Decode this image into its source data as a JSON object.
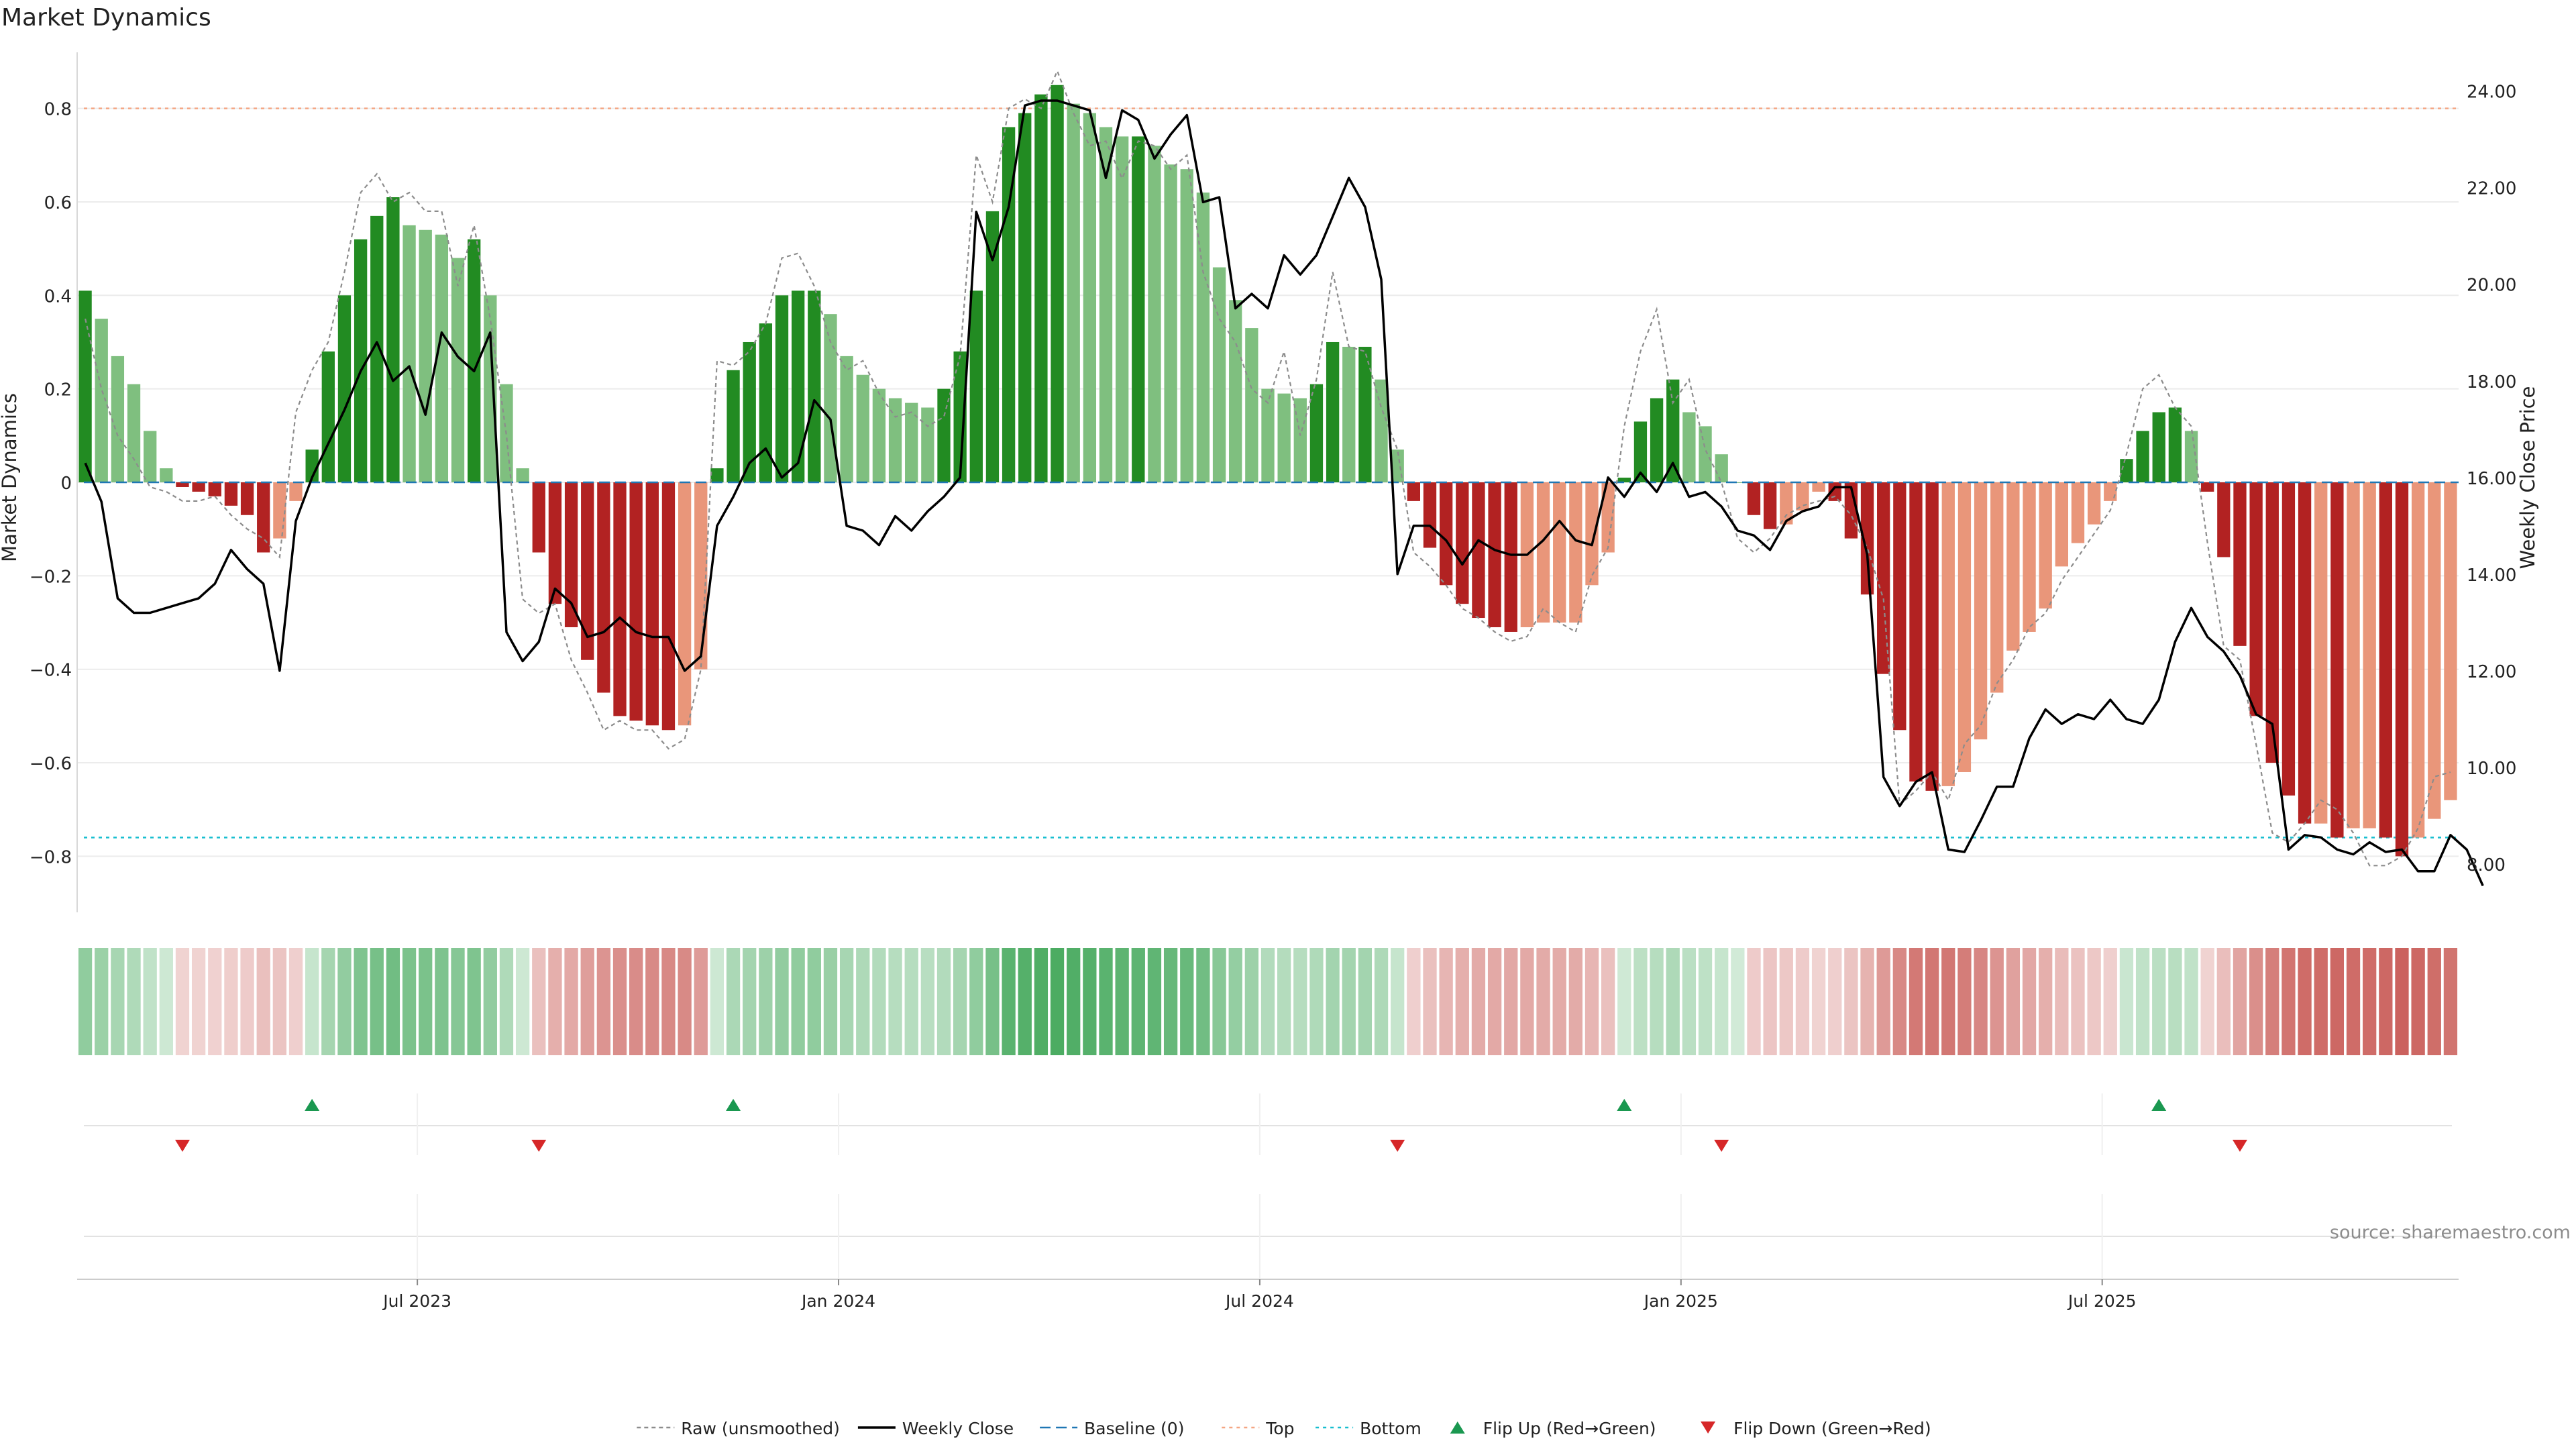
{
  "chart_data": {
    "type": "bar",
    "title": "Market Dynamics",
    "ylabel": "Market Dynamics",
    "y2label": "Weekly Close Price",
    "ylim": [
      -0.92,
      0.92
    ],
    "y2lim": [
      7.0,
      24.8
    ],
    "yticks": [
      {
        "v": 0.8,
        "label": "0.8"
      },
      {
        "v": 0.6,
        "label": "0.6"
      },
      {
        "v": 0.4,
        "label": "0.4"
      },
      {
        "v": 0.2,
        "label": "0.2"
      },
      {
        "v": 0,
        "label": "0"
      },
      {
        "v": -0.2,
        "label": "−0.2"
      },
      {
        "v": -0.4,
        "label": "−0.4"
      },
      {
        "v": -0.6,
        "label": "−0.6"
      },
      {
        "v": -0.8,
        "label": "−0.8"
      }
    ],
    "y2ticks": [
      {
        "v": 24,
        "label": "24.00"
      },
      {
        "v": 22,
        "label": "22.00"
      },
      {
        "v": 20,
        "label": "20.00"
      },
      {
        "v": 18,
        "label": "18.00"
      },
      {
        "v": 16,
        "label": "16.00"
      },
      {
        "v": 14,
        "label": "14.00"
      },
      {
        "v": 12,
        "label": "12.00"
      },
      {
        "v": 10,
        "label": "10.00"
      },
      {
        "v": 8,
        "label": "8.00"
      }
    ],
    "xticks": [
      {
        "i": 20.5,
        "label": "Jul 2023"
      },
      {
        "i": 46.5,
        "label": "Jan 2024"
      },
      {
        "i": 72.5,
        "label": "Jul 2024"
      },
      {
        "i": 98.5,
        "label": "Jan 2025"
      },
      {
        "i": 124.5,
        "label": "Jul 2025"
      }
    ],
    "top_level": 0.8,
    "bottom_level": -0.76,
    "baseline": 0,
    "palette": {
      "dark_green": "#228b22",
      "light_green": "#7fbf7f",
      "dark_red": "#b22222",
      "light_red": "#e9967a",
      "close": "#000000",
      "raw": "#8c8c8c",
      "baseline": "#1f77b4",
      "top": "#f4a582",
      "bottom": "#17becf",
      "flip_up": "#1a9850",
      "flip_down": "#d62728"
    },
    "momentum": [
      0.41,
      0.35,
      0.27,
      0.21,
      0.11,
      0.03,
      -0.01,
      -0.02,
      -0.03,
      -0.05,
      -0.07,
      -0.15,
      -0.12,
      -0.04,
      0.07,
      0.28,
      0.4,
      0.52,
      0.57,
      0.61,
      0.55,
      0.54,
      0.53,
      0.48,
      0.52,
      0.4,
      0.21,
      0.03,
      -0.15,
      -0.26,
      -0.31,
      -0.38,
      -0.45,
      -0.5,
      -0.51,
      -0.52,
      -0.53,
      -0.52,
      -0.4,
      0.03,
      0.24,
      0.3,
      0.34,
      0.4,
      0.41,
      0.41,
      0.36,
      0.27,
      0.23,
      0.2,
      0.18,
      0.17,
      0.16,
      0.2,
      0.28,
      0.41,
      0.58,
      0.76,
      0.79,
      0.83,
      0.85,
      0.81,
      0.79,
      0.76,
      0.74,
      0.74,
      0.72,
      0.68,
      0.67,
      0.62,
      0.46,
      0.39,
      0.33,
      0.2,
      0.19,
      0.18,
      0.21,
      0.3,
      0.29,
      0.29,
      0.22,
      0.07,
      -0.04,
      -0.14,
      -0.22,
      -0.26,
      -0.29,
      -0.31,
      -0.32,
      -0.31,
      -0.3,
      -0.3,
      -0.3,
      -0.22,
      -0.15,
      0.01,
      0.13,
      0.18,
      0.22,
      0.15,
      0.12,
      0.06,
      0.0,
      -0.07,
      -0.1,
      -0.09,
      -0.06,
      -0.02,
      -0.04,
      -0.12,
      -0.24,
      -0.41,
      -0.53,
      -0.64,
      -0.66,
      -0.65,
      -0.62,
      -0.55,
      -0.45,
      -0.36,
      -0.32,
      -0.27,
      -0.18,
      -0.13,
      -0.09,
      -0.04,
      0.05,
      0.11,
      0.15,
      0.16,
      0.11,
      -0.02,
      -0.16,
      -0.35,
      -0.5,
      -0.6,
      -0.67,
      -0.73,
      -0.73,
      -0.76,
      -0.74,
      -0.74,
      -0.76,
      -0.8,
      -0.76,
      -0.72,
      -0.68
    ],
    "raw": [
      0.35,
      0.2,
      0.1,
      0.05,
      -0.01,
      -0.02,
      -0.04,
      -0.04,
      -0.03,
      -0.07,
      -0.1,
      -0.12,
      -0.16,
      0.15,
      0.24,
      0.3,
      0.45,
      0.62,
      0.66,
      0.6,
      0.62,
      0.58,
      0.58,
      0.42,
      0.55,
      0.35,
      0.1,
      -0.25,
      -0.28,
      -0.26,
      -0.38,
      -0.45,
      -0.53,
      -0.51,
      -0.53,
      -0.53,
      -0.57,
      -0.55,
      -0.4,
      0.26,
      0.25,
      0.28,
      0.34,
      0.48,
      0.49,
      0.42,
      0.3,
      0.24,
      0.26,
      0.19,
      0.14,
      0.15,
      0.12,
      0.14,
      0.27,
      0.7,
      0.6,
      0.8,
      0.82,
      0.8,
      0.88,
      0.79,
      0.72,
      0.73,
      0.65,
      0.73,
      0.72,
      0.67,
      0.7,
      0.45,
      0.35,
      0.3,
      0.2,
      0.17,
      0.28,
      0.1,
      0.22,
      0.45,
      0.29,
      0.28,
      0.16,
      0.07,
      -0.15,
      -0.18,
      -0.22,
      -0.27,
      -0.29,
      -0.32,
      -0.34,
      -0.33,
      -0.27,
      -0.3,
      -0.32,
      -0.2,
      -0.14,
      0.12,
      0.28,
      0.37,
      0.17,
      0.22,
      0.07,
      0.0,
      -0.12,
      -0.15,
      -0.12,
      -0.07,
      -0.05,
      -0.04,
      -0.03,
      -0.07,
      -0.14,
      -0.25,
      -0.69,
      -0.66,
      -0.62,
      -0.68,
      -0.56,
      -0.52,
      -0.43,
      -0.38,
      -0.31,
      -0.28,
      -0.21,
      -0.16,
      -0.11,
      -0.06,
      0.06,
      0.2,
      0.23,
      0.16,
      0.12,
      -0.13,
      -0.35,
      -0.38,
      -0.56,
      -0.75,
      -0.77,
      -0.73,
      -0.68,
      -0.7,
      -0.75,
      -0.82,
      -0.82,
      -0.8,
      -0.74,
      -0.63,
      -0.62
    ],
    "close": [
      16.3,
      15.5,
      13.5,
      13.2,
      13.2,
      13.3,
      13.4,
      13.5,
      13.8,
      14.5,
      14.1,
      13.8,
      12.0,
      15.1,
      16.0,
      16.7,
      17.4,
      18.2,
      18.8,
      18.0,
      18.3,
      17.3,
      19.0,
      18.5,
      18.2,
      19.0,
      12.8,
      12.2,
      12.6,
      13.7,
      13.4,
      12.7,
      12.8,
      13.1,
      12.8,
      12.7,
      12.7,
      12.0,
      12.3,
      15.0,
      15.6,
      16.3,
      16.6,
      16.0,
      16.3,
      17.6,
      17.2,
      15.0,
      14.9,
      14.6,
      15.2,
      14.9,
      15.3,
      15.6,
      16.0,
      21.5,
      20.5,
      21.6,
      23.7,
      23.8,
      23.8,
      23.7,
      23.6,
      22.2,
      23.6,
      23.4,
      22.6,
      23.1,
      23.5,
      21.7,
      21.8,
      19.5,
      19.8,
      19.5,
      20.6,
      20.2,
      20.6,
      21.4,
      22.2,
      21.6,
      20.1,
      14.0,
      15.0,
      15.0,
      14.7,
      14.2,
      14.7,
      14.5,
      14.4,
      14.4,
      14.7,
      15.1,
      14.7,
      14.6,
      16.0,
      15.6,
      16.1,
      15.7,
      16.3,
      15.6,
      15.7,
      15.4,
      14.9,
      14.8,
      14.5,
      15.1,
      15.3,
      15.4,
      15.8,
      15.8,
      14.4,
      9.8,
      9.2,
      9.7,
      9.9,
      8.3,
      8.25,
      8.9,
      9.6,
      9.6,
      10.6,
      11.2,
      10.9,
      11.1,
      11.0,
      11.4,
      11.0,
      10.9,
      11.4,
      12.6,
      13.3,
      12.7,
      12.4,
      11.9,
      11.1,
      10.9,
      8.3,
      8.6,
      8.55,
      8.3,
      8.2,
      8.45,
      8.25,
      8.3,
      7.85,
      7.85,
      8.6,
      8.3,
      7.55
    ],
    "flips_up": [
      14,
      40,
      95,
      128
    ],
    "flips_down": [
      6,
      28,
      81,
      101,
      133
    ],
    "legend": [
      {
        "key": "raw",
        "label": "Raw (unsmoothed)"
      },
      {
        "key": "close",
        "label": "Weekly Close"
      },
      {
        "key": "baseline",
        "label": "Baseline (0)"
      },
      {
        "key": "top",
        "label": "Top"
      },
      {
        "key": "bottom",
        "label": "Bottom"
      },
      {
        "key": "flip_up",
        "label": "Flip Up (Red→Green)"
      },
      {
        "key": "flip_down",
        "label": "Flip Down (Green→Red)"
      }
    ],
    "source": "source: sharemaestro.com",
    "grid": true,
    "legend_position": "bottom-center"
  }
}
